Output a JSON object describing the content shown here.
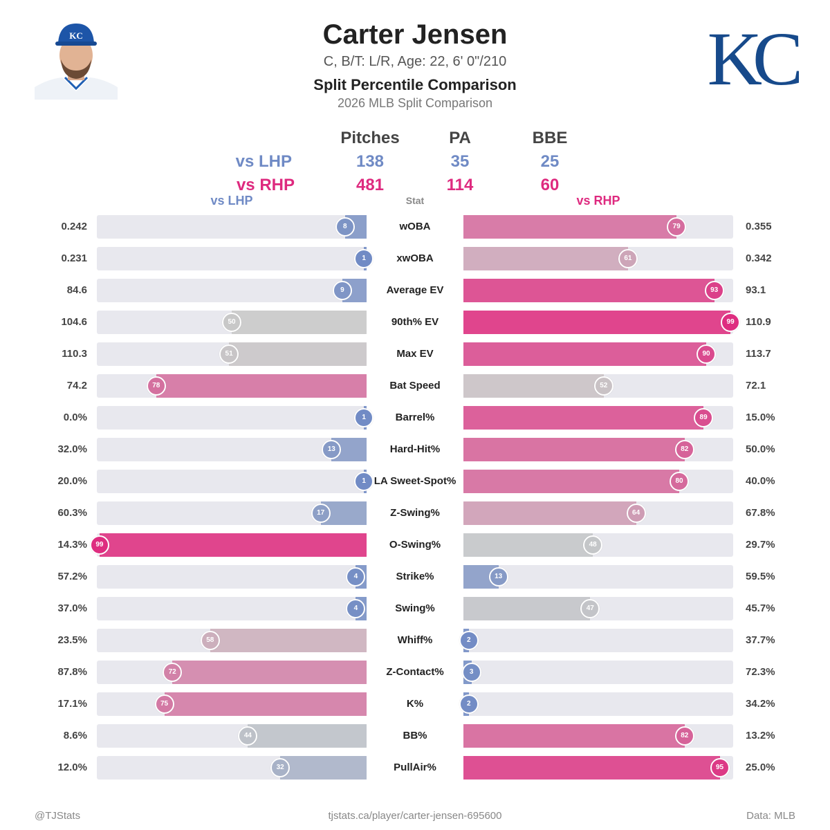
{
  "header": {
    "player_name": "Carter Jensen",
    "player_info": "C, B/T: L/R, Age: 22, 6' 0\"/210",
    "chart_title": "Split Percentile Comparison",
    "chart_subtitle": "2026 MLB Split Comparison",
    "team_logo_text": "KC",
    "headshot_cap_text": "KC"
  },
  "summary": {
    "headers": [
      "Pitches",
      "PA",
      "BBE"
    ],
    "lhp": {
      "label": "vs LHP",
      "values": [
        "138",
        "35",
        "25"
      ]
    },
    "rhp": {
      "label": "vs RHP",
      "values": [
        "481",
        "114",
        "60"
      ]
    }
  },
  "columns": {
    "left": "vs LHP",
    "stat": "Stat",
    "right": "vs RHP"
  },
  "footer": {
    "left": "@TJStats",
    "center": "tjstats.ca/player/carter-jensen-695600",
    "right": "Data: MLB"
  },
  "colors": {
    "low": "#6f8ac5",
    "mid": "#c8c8c8",
    "high": "#de2a7f",
    "track": "#e8e8ee"
  },
  "chart_data": {
    "type": "bar",
    "categories": [
      "wOBA",
      "xwOBA",
      "Average EV",
      "90th% EV",
      "Max EV",
      "Bat Speed",
      "Barrel%",
      "Hard-Hit%",
      "LA Sweet-Spot%",
      "Z-Swing%",
      "O-Swing%",
      "Strike%",
      "Swing%",
      "Whiff%",
      "Z-Contact%",
      "K%",
      "BB%",
      "PullAir%"
    ],
    "series": [
      {
        "name": "vs LHP",
        "percentiles": [
          8,
          1,
          9,
          50,
          51,
          78,
          1,
          13,
          1,
          17,
          99,
          4,
          4,
          58,
          72,
          75,
          44,
          32
        ],
        "values": [
          "0.242",
          "0.231",
          "84.6",
          "104.6",
          "110.3",
          "74.2",
          "0.0%",
          "32.0%",
          "20.0%",
          "60.3%",
          "14.3%",
          "57.2%",
          "37.0%",
          "23.5%",
          "87.8%",
          "17.1%",
          "8.6%",
          "12.0%"
        ]
      },
      {
        "name": "vs RHP",
        "percentiles": [
          79,
          61,
          93,
          99,
          90,
          52,
          89,
          82,
          80,
          64,
          48,
          13,
          47,
          2,
          3,
          2,
          82,
          95
        ],
        "values": [
          "0.355",
          "0.342",
          "93.1",
          "110.9",
          "113.7",
          "72.1",
          "15.0%",
          "50.0%",
          "40.0%",
          "67.8%",
          "29.7%",
          "59.5%",
          "45.7%",
          "37.7%",
          "72.3%",
          "34.2%",
          "13.2%",
          "25.0%"
        ]
      }
    ],
    "xlim": [
      0,
      100
    ]
  }
}
